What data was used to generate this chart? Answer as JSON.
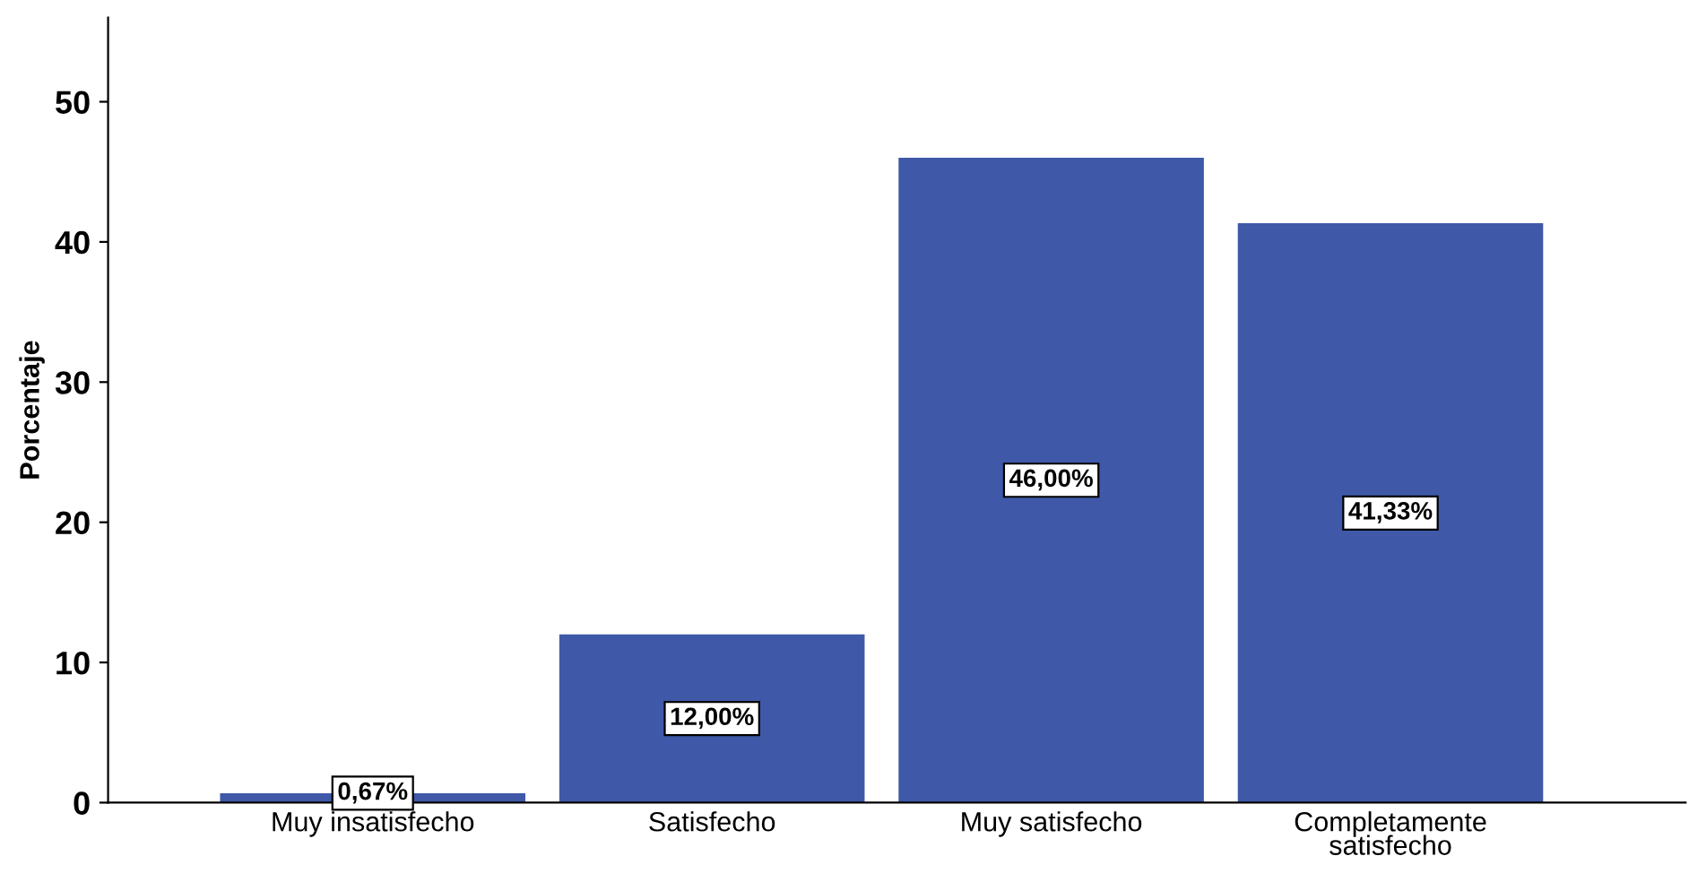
{
  "chart_data": {
    "type": "bar",
    "ylabel": "Porcentaje",
    "categories": [
      "Muy insatisfecho",
      "Satisfecho",
      "Muy satisfecho",
      "Completamente\nsatisfecho"
    ],
    "values": [
      0.67,
      12.0,
      46.0,
      41.33
    ],
    "value_labels": [
      "0,67%",
      "12,00%",
      "46,00%",
      "41,33%"
    ],
    "color": "#3f59a8",
    "ylim": [
      0,
      56
    ],
    "yticks": [
      0,
      10,
      20,
      30,
      40,
      50
    ],
    "grid": false
  }
}
